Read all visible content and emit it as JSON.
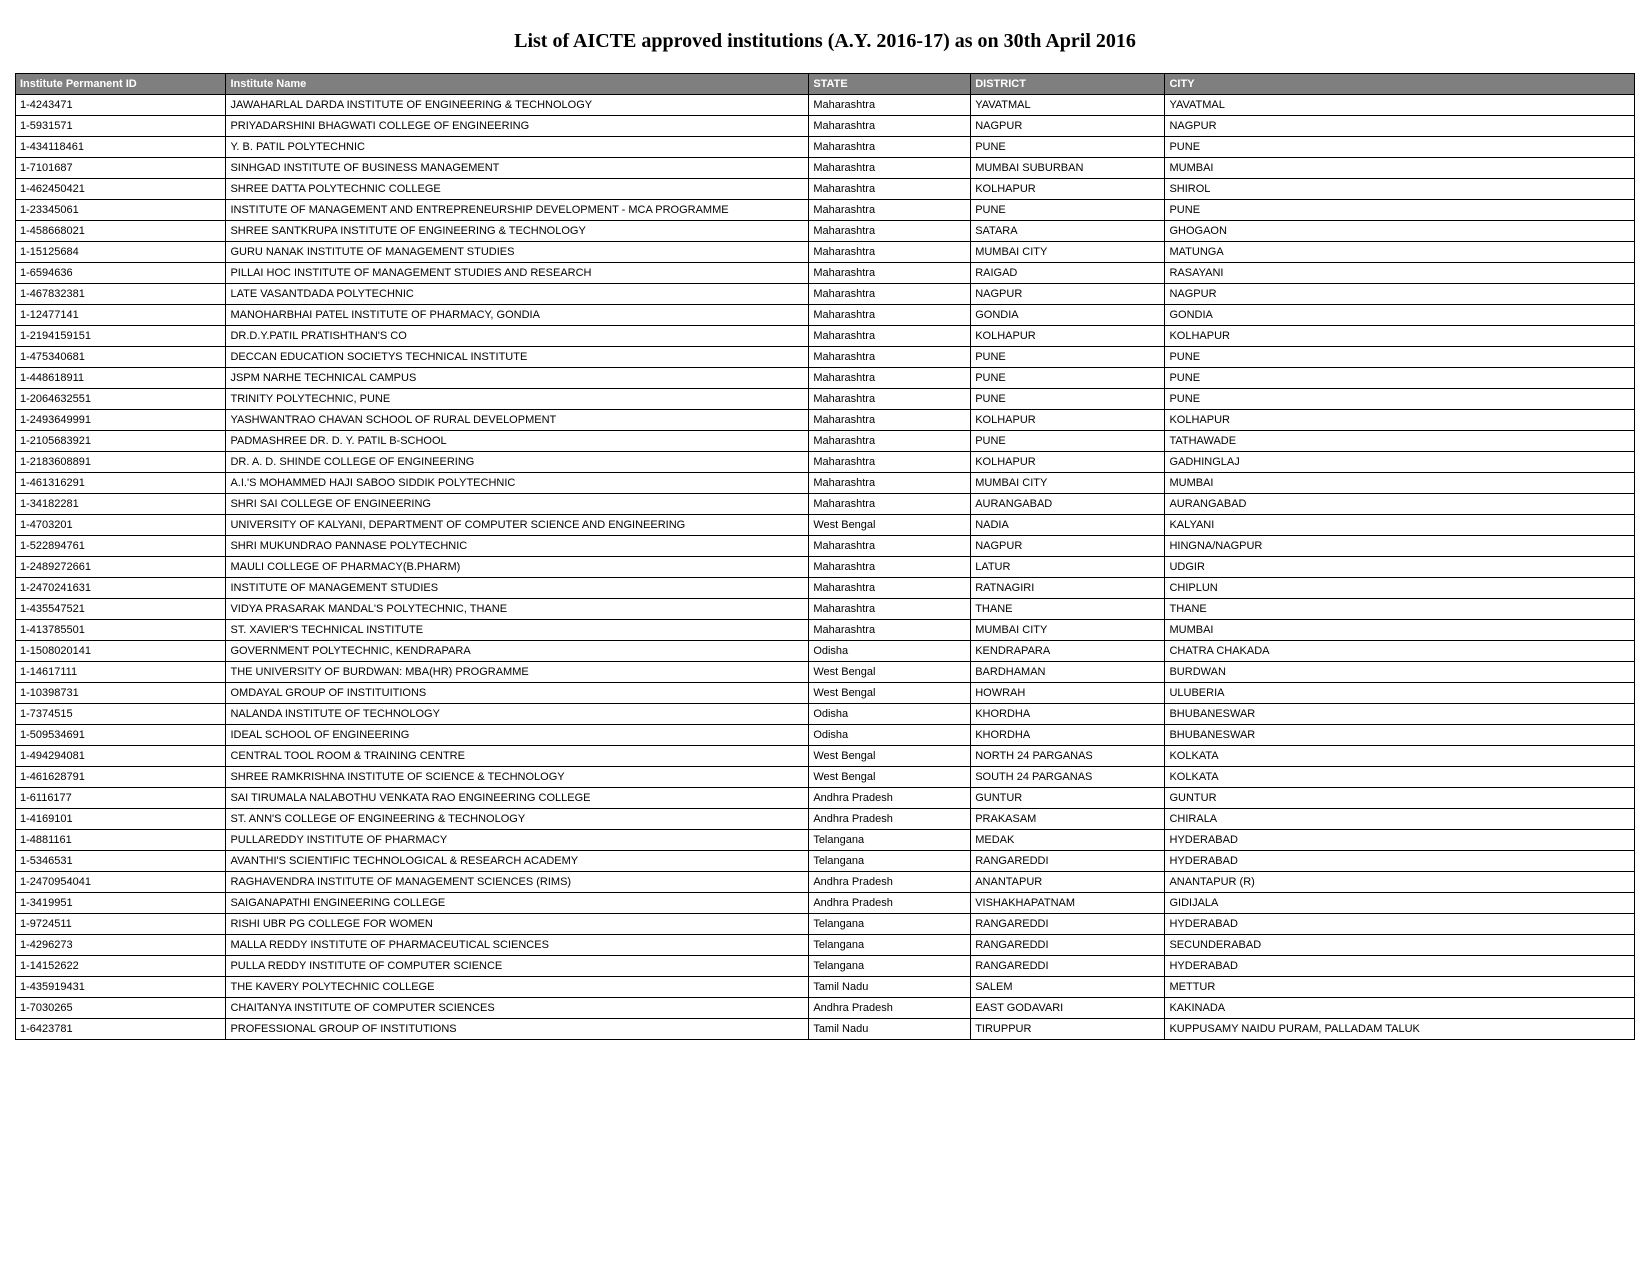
{
  "title": "List of AICTE approved institutions (A.Y. 2016-17) as on 30th April 2016",
  "columns": [
    "Institute Permanent ID",
    "Institute Name",
    "STATE",
    "DISTRICT",
    "CITY"
  ],
  "rows": [
    [
      "1-4243471",
      "JAWAHARLAL DARDA INSTITUTE OF ENGINEERING & TECHNOLOGY",
      "Maharashtra",
      "YAVATMAL",
      "YAVATMAL"
    ],
    [
      "1-5931571",
      "PRIYADARSHINI BHAGWATI  COLLEGE OF ENGINEERING",
      "Maharashtra",
      "NAGPUR",
      "NAGPUR"
    ],
    [
      "1-434118461",
      "Y. B. PATIL POLYTECHNIC",
      "Maharashtra",
      "PUNE",
      "PUNE"
    ],
    [
      "1-7101687",
      "SINHGAD INSTITUTE OF BUSINESS MANAGEMENT",
      "Maharashtra",
      "MUMBAI SUBURBAN",
      "MUMBAI"
    ],
    [
      "1-462450421",
      "SHREE DATTA POLYTECHNIC COLLEGE",
      "Maharashtra",
      "KOLHAPUR",
      "SHIROL"
    ],
    [
      "1-23345061",
      "INSTITUTE OF MANAGEMENT AND ENTREPRENEURSHIP DEVELOPMENT - MCA PROGRAMME",
      "Maharashtra",
      "PUNE",
      "PUNE"
    ],
    [
      "1-458668021",
      "SHREE SANTKRUPA INSTITUTE OF ENGINEERING & TECHNOLOGY",
      "Maharashtra",
      "SATARA",
      "GHOGAON"
    ],
    [
      "1-15125684",
      "GURU NANAK INSTITUTE OF MANAGEMENT STUDIES",
      "Maharashtra",
      "MUMBAI CITY",
      "MATUNGA"
    ],
    [
      "1-6594636",
      "PILLAI HOC INSTITUTE OF MANAGEMENT STUDIES AND RESEARCH",
      "Maharashtra",
      "RAIGAD",
      "RASAYANI"
    ],
    [
      "1-467832381",
      "LATE VASANTDADA POLYTECHNIC",
      "Maharashtra",
      "NAGPUR",
      "NAGPUR"
    ],
    [
      "1-12477141",
      "MANOHARBHAI PATEL INSTITUTE OF PHARMACY, GONDIA",
      "Maharashtra",
      "GONDIA",
      "GONDIA"
    ],
    [
      "1-2194159151",
      "DR.D.Y.PATIL PRATISHTHAN'S CO",
      "Maharashtra",
      "KOLHAPUR",
      "KOLHAPUR"
    ],
    [
      "1-475340681",
      "DECCAN EDUCATION SOCIETYS TECHNICAL INSTITUTE",
      "Maharashtra",
      "PUNE",
      "PUNE"
    ],
    [
      "1-448618911",
      "JSPM NARHE TECHNICAL CAMPUS",
      "Maharashtra",
      "PUNE",
      "PUNE"
    ],
    [
      "1-2064632551",
      "TRINITY POLYTECHNIC, PUNE",
      "Maharashtra",
      "PUNE",
      "PUNE"
    ],
    [
      "1-2493649991",
      "YASHWANTRAO CHAVAN SCHOOL OF RURAL DEVELOPMENT",
      "Maharashtra",
      "KOLHAPUR",
      "KOLHAPUR"
    ],
    [
      "1-2105683921",
      "PADMASHREE DR. D. Y. PATIL B-SCHOOL",
      "Maharashtra",
      "PUNE",
      "TATHAWADE"
    ],
    [
      "1-2183608891",
      "DR. A. D. SHINDE COLLEGE OF ENGINEERING",
      "Maharashtra",
      "KOLHAPUR",
      "GADHINGLAJ"
    ],
    [
      "1-461316291",
      "A.I.'S MOHAMMED HAJI SABOO SIDDIK POLYTECHNIC",
      "Maharashtra",
      "MUMBAI CITY",
      "MUMBAI"
    ],
    [
      "1-34182281",
      "SHRI SAI COLLEGE OF ENGINEERING",
      "Maharashtra",
      "AURANGABAD",
      "AURANGABAD"
    ],
    [
      "1-4703201",
      "UNIVERSITY OF KALYANI, DEPARTMENT OF COMPUTER SCIENCE AND ENGINEERING",
      "West Bengal",
      "NADIA",
      "KALYANI"
    ],
    [
      "1-522894761",
      "SHRI MUKUNDRAO PANNASE POLYTECHNIC",
      "Maharashtra",
      "NAGPUR",
      "HINGNA/NAGPUR"
    ],
    [
      "1-2489272661",
      "MAULI COLLEGE OF PHARMACY(B.PHARM)",
      "Maharashtra",
      "LATUR",
      "UDGIR"
    ],
    [
      "1-2470241631",
      "INSTITUTE OF MANAGEMENT STUDIES",
      "Maharashtra",
      "RATNAGIRI",
      "CHIPLUN"
    ],
    [
      "1-435547521",
      "VIDYA PRASARAK MANDAL'S POLYTECHNIC, THANE",
      "Maharashtra",
      "THANE",
      "THANE"
    ],
    [
      "1-413785501",
      "ST. XAVIER'S TECHNICAL INSTITUTE",
      "Maharashtra",
      "MUMBAI CITY",
      "MUMBAI"
    ],
    [
      "1-1508020141",
      "GOVERNMENT POLYTECHNIC, KENDRAPARA",
      "Odisha",
      "KENDRAPARA",
      "CHATRA CHAKADA"
    ],
    [
      "1-14617111",
      "THE UNIVERSITY OF BURDWAN: MBA(HR) PROGRAMME",
      "West Bengal",
      "BARDHAMAN",
      "BURDWAN"
    ],
    [
      "1-10398731",
      "OMDAYAL GROUP OF INSTITUITIONS",
      "West Bengal",
      "HOWRAH",
      "ULUBERIA"
    ],
    [
      "1-7374515",
      "NALANDA INSTITUTE OF TECHNOLOGY",
      "Odisha",
      "KHORDHA",
      "BHUBANESWAR"
    ],
    [
      "1-509534691",
      "IDEAL SCHOOL OF ENGINEERING",
      "Odisha",
      "KHORDHA",
      "BHUBANESWAR"
    ],
    [
      "1-494294081",
      "CENTRAL TOOL ROOM & TRAINING CENTRE",
      "West Bengal",
      "NORTH 24 PARGANAS",
      "KOLKATA"
    ],
    [
      "1-461628791",
      "SHREE RAMKRISHNA INSTITUTE OF SCIENCE & TECHNOLOGY",
      "West Bengal",
      "SOUTH 24 PARGANAS",
      "KOLKATA"
    ],
    [
      "1-6116177",
      "SAI TIRUMALA NALABOTHU VENKATA RAO ENGINEERING COLLEGE",
      "Andhra Pradesh",
      "GUNTUR",
      "GUNTUR"
    ],
    [
      "1-4169101",
      "ST. ANN'S COLLEGE OF ENGINEERING & TECHNOLOGY",
      "Andhra Pradesh",
      "PRAKASAM",
      "CHIRALA"
    ],
    [
      "1-4881161",
      "PULLAREDDY INSTITUTE OF PHARMACY",
      "Telangana",
      "MEDAK",
      "HYDERABAD"
    ],
    [
      "1-5346531",
      "AVANTHI'S SCIENTIFIC TECHNOLOGICAL & RESEARCH ACADEMY",
      "Telangana",
      "RANGAREDDI",
      "HYDERABAD"
    ],
    [
      "1-2470954041",
      "RAGHAVENDRA INSTITUTE OF MANAGEMENT SCIENCES (RIMS)",
      "Andhra Pradesh",
      "ANANTAPUR",
      "ANANTAPUR (R)"
    ],
    [
      "1-3419951",
      "SAIGANAPATHI ENGINEERING COLLEGE",
      "Andhra Pradesh",
      "VISHAKHAPATNAM",
      "GIDIJALA"
    ],
    [
      "1-9724511",
      "RISHI UBR PG COLLEGE FOR WOMEN",
      "Telangana",
      "RANGAREDDI",
      "HYDERABAD"
    ],
    [
      "1-4296273",
      "MALLA REDDY INSTITUTE OF PHARMACEUTICAL SCIENCES",
      "Telangana",
      "RANGAREDDI",
      "SECUNDERABAD"
    ],
    [
      "1-14152622",
      "PULLA REDDY INSTITUTE OF COMPUTER SCIENCE",
      "Telangana",
      "RANGAREDDI",
      "HYDERABAD"
    ],
    [
      "1-435919431",
      "THE KAVERY POLYTECHNIC COLLEGE",
      "Tamil Nadu",
      "SALEM",
      "METTUR"
    ],
    [
      "1-7030265",
      "CHAITANYA INSTITUTE OF COMPUTER SCIENCES",
      "Andhra Pradesh",
      "EAST GODAVARI",
      "KAKINADA"
    ],
    [
      "1-6423781",
      "PROFESSIONAL GROUP OF INSTITUTIONS",
      "Tamil Nadu",
      "TIRUPPUR",
      "KUPPUSAMY NAIDU PURAM, PALLADAM TALUK"
    ]
  ]
}
